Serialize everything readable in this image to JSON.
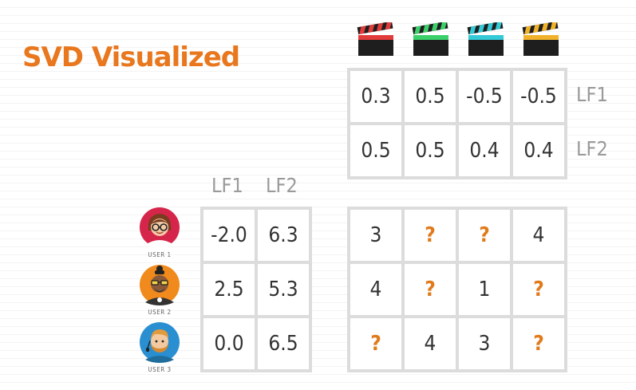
{
  "title": "SVD Visualized",
  "colors": {
    "title": "#e8771e",
    "question": "#e07b1c",
    "grid": "#dcdcdc",
    "label": "#9a9a9a",
    "clapper_stripes": [
      "#e23b3b",
      "#3bd06a",
      "#33c9d6",
      "#f0b22a"
    ]
  },
  "movies": [
    {
      "icon": "clapperboard-red-icon"
    },
    {
      "icon": "clapperboard-green-icon"
    },
    {
      "icon": "clapperboard-cyan-icon"
    },
    {
      "icon": "clapperboard-yellow-icon"
    }
  ],
  "movie_factors": {
    "row_labels": [
      "LF1",
      "LF2"
    ],
    "rows": [
      [
        "0.3",
        "0.5",
        "-0.5",
        "-0.5"
      ],
      [
        "0.5",
        "0.5",
        "0.4",
        "0.4"
      ]
    ]
  },
  "user_factors": {
    "col_labels": [
      "LF1",
      "LF2"
    ],
    "rows": [
      [
        "-2.0",
        "6.3"
      ],
      [
        "2.5",
        "5.3"
      ],
      [
        "0.0",
        "6.5"
      ]
    ]
  },
  "users": [
    {
      "label": "USER 1",
      "icon": "user-1-avatar-icon"
    },
    {
      "label": "USER 2",
      "icon": "user-2-avatar-icon"
    },
    {
      "label": "USER 3",
      "icon": "user-3-avatar-icon"
    }
  ],
  "ratings": {
    "rows": [
      [
        "3",
        "?",
        "?",
        "4"
      ],
      [
        "4",
        "?",
        "1",
        "?"
      ],
      [
        "?",
        "4",
        "3",
        "?"
      ]
    ]
  }
}
